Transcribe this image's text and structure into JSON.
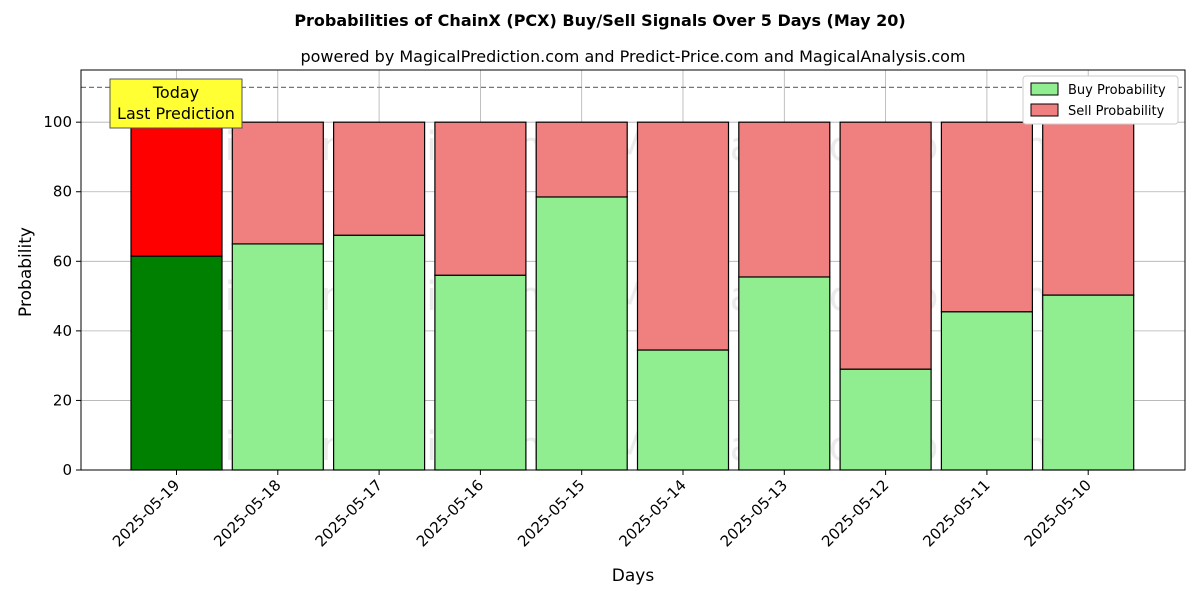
{
  "chart_data": {
    "type": "bar",
    "stacked": true,
    "title": "Probabilities of ChainX (PCX) Buy/Sell Signals Over 5 Days (May 20)",
    "subtitle": "powered by MagicalPrediction.com and Predict-Price.com and MagicalAnalysis.com",
    "xlabel": "Days",
    "ylabel": "Probability",
    "ylim": [
      0,
      115
    ],
    "yticks": [
      0,
      20,
      40,
      60,
      80,
      100
    ],
    "reference_line": 110,
    "grid": true,
    "legend_position": "top-right",
    "categories": [
      "2025-05-19",
      "2025-05-18",
      "2025-05-17",
      "2025-05-16",
      "2025-05-15",
      "2025-05-14",
      "2025-05-13",
      "2025-05-12",
      "2025-05-11",
      "2025-05-10"
    ],
    "series": [
      {
        "name": "Buy Probability",
        "color": "#90ee90",
        "highlight_color": "#008000",
        "values": [
          61.5,
          65.0,
          67.5,
          56.0,
          78.5,
          34.5,
          55.5,
          29.0,
          45.5,
          50.3
        ]
      },
      {
        "name": "Sell Probability",
        "color": "#f08080",
        "highlight_color": "#ff0000",
        "values": [
          38.5,
          35.0,
          32.5,
          44.0,
          21.5,
          65.5,
          44.5,
          71.0,
          54.5,
          49.7
        ]
      }
    ],
    "highlight_index": 0,
    "annotation": {
      "line1": "Today",
      "line2": "Last Prediction",
      "color": "#ffff33"
    },
    "watermarks": [
      "MagicalAnalysis.com",
      "MagicalPrediction.com"
    ]
  }
}
